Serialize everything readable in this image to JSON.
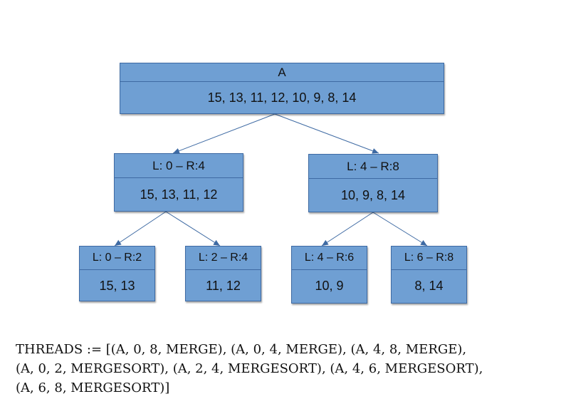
{
  "tree": {
    "root": {
      "header": "A",
      "values": "15, 13, 11, 12, 10, 9, 8, 14"
    },
    "level1": [
      {
        "header": "L: 0 – R:4",
        "values": "15, 13, 11, 12"
      },
      {
        "header": "L: 4 – R:8",
        "values": "10, 9, 8, 14"
      }
    ],
    "level2": [
      {
        "header": "L: 0 – R:2",
        "values": "15, 13"
      },
      {
        "header": "L: 2 – R:4",
        "values": "11, 12"
      },
      {
        "header": "L: 4 – R:6",
        "values": "10, 9"
      },
      {
        "header": "L: 6 – R:8",
        "values": "8, 14"
      }
    ]
  },
  "threads": {
    "text": "THREADS := [(A, 0, 8, MERGE), (A, 0, 4, MERGE), (A, 4, 8, MERGE),\n(A, 0, 2, MERGESORT), (A, 2, 4, MERGESORT), (A, 4, 6, MERGESORT),\n(A, 6, 8, MERGESORT)]"
  },
  "colors": {
    "node_fill": "#6f9fd3",
    "node_border": "#3e6aa3",
    "connector": "#3e6aa3"
  }
}
